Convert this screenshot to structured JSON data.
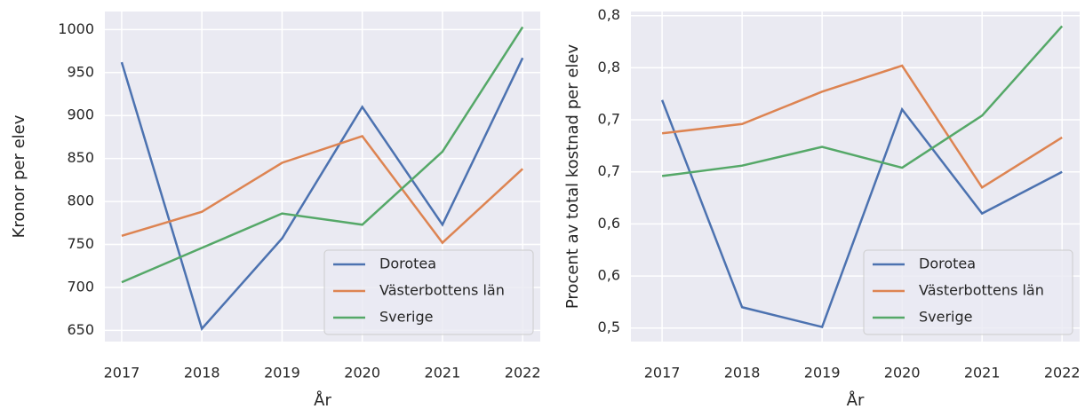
{
  "chart_data": [
    {
      "type": "line",
      "x_label": "År",
      "y_label": "Kronor per elev",
      "x": [
        2017,
        2018,
        2019,
        2020,
        2021,
        2022
      ],
      "xlim": [
        2016.79,
        2022.22
      ],
      "xticks": [
        2017,
        2018,
        2019,
        2020,
        2021,
        2022
      ],
      "ylim": [
        637,
        1021
      ],
      "yticks": [
        650,
        700,
        750,
        800,
        850,
        900,
        950,
        1000
      ],
      "grid": true,
      "legend": "lower right",
      "series": [
        {
          "name": "Dorotea",
          "color": "#4c72b0",
          "values": [
            962,
            652,
            757,
            910,
            773,
            967
          ]
        },
        {
          "name": "Västerbottens län",
          "color": "#dd8452",
          "values": [
            760,
            788,
            845,
            876,
            752,
            838
          ]
        },
        {
          "name": "Sverige",
          "color": "#55a868",
          "values": [
            706,
            746,
            786,
            773,
            858,
            1003
          ]
        }
      ]
    },
    {
      "type": "line",
      "x_label": "År",
      "y_label": "Procent av total kostnad per elev",
      "x": [
        2017,
        2018,
        2019,
        2020,
        2021,
        2022
      ],
      "xlim": [
        2016.61,
        2022.22
      ],
      "xticks": [
        2017,
        2018,
        2019,
        2020,
        2021,
        2022
      ],
      "ylim": [
        0.487,
        0.804
      ],
      "yticks": [
        {
          "value": 0.5,
          "label": "0,5"
        },
        {
          "value": 0.55,
          "label": "0,6"
        },
        {
          "value": 0.6,
          "label": "0,6"
        },
        {
          "value": 0.65,
          "label": "0,7"
        },
        {
          "value": 0.7,
          "label": "0,7"
        },
        {
          "value": 0.75,
          "label": "0,8"
        },
        {
          "value": 0.8,
          "label": "0,8"
        }
      ],
      "grid": true,
      "legend": "lower right",
      "series": [
        {
          "name": "Dorotea",
          "color": "#4c72b0",
          "values": [
            0.719,
            0.52,
            0.501,
            0.71,
            0.61,
            0.65
          ]
        },
        {
          "name": "Västerbottens län",
          "color": "#dd8452",
          "values": [
            0.687,
            0.696,
            0.727,
            0.752,
            0.635,
            0.683
          ]
        },
        {
          "name": "Sverige",
          "color": "#55a868",
          "values": [
            0.646,
            0.656,
            0.674,
            0.654,
            0.704,
            0.79
          ]
        }
      ]
    }
  ]
}
